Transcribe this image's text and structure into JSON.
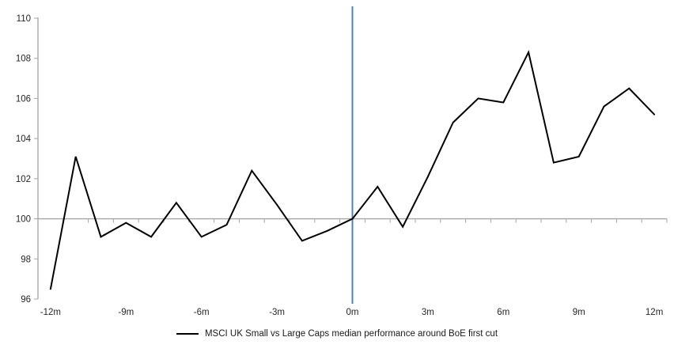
{
  "chart_data": {
    "type": "line",
    "title": "",
    "x_label": "",
    "y_label": "",
    "x_unit": "months relative to first cut",
    "x": [
      -12,
      -11,
      -10,
      -9,
      -8,
      -7,
      -6,
      -5,
      -4,
      -3,
      -2,
      -1,
      0,
      1,
      2,
      3,
      4,
      5,
      6,
      7,
      8,
      9,
      10,
      11,
      12
    ],
    "series": [
      {
        "name": "MSCI UK Small vs Large Caps median performance around BoE first cut",
        "color": "#000000",
        "values": [
          96.5,
          103.1,
          99.1,
          99.8,
          99.1,
          100.8,
          99.1,
          99.7,
          102.4,
          100.7,
          98.9,
          99.4,
          100.0,
          101.6,
          99.6,
          102.1,
          104.8,
          106.0,
          105.8,
          108.3,
          102.8,
          103.1,
          105.6,
          106.5,
          105.2
        ]
      }
    ],
    "ylim": [
      96,
      110
    ],
    "y_ticks": [
      96,
      98,
      100,
      102,
      104,
      106,
      108,
      110
    ],
    "y_tick_labels": [
      "96",
      "98",
      "100",
      "102",
      "104",
      "106",
      "108",
      "110"
    ],
    "x_ticks": [
      -12,
      -9,
      -6,
      -3,
      0,
      3,
      6,
      9,
      12
    ],
    "x_tick_labels": [
      "-12m",
      "-9m",
      "-6m",
      "-3m",
      "0m",
      "3m",
      "6m",
      "9m",
      "12m"
    ],
    "grid": "off",
    "baseline_value": 100,
    "event_line_x": 0,
    "colors": {
      "series": "#000000",
      "event_line": "#4f81bd",
      "baseline": "#a6a6a6",
      "axis": "#a6a6a6",
      "tick_label": "#262626"
    },
    "legend": {
      "position": "bottom-center",
      "entries": [
        {
          "label": "MSCI UK Small vs Large Caps median performance around BoE first cut",
          "swatch": "black-line"
        }
      ]
    }
  }
}
